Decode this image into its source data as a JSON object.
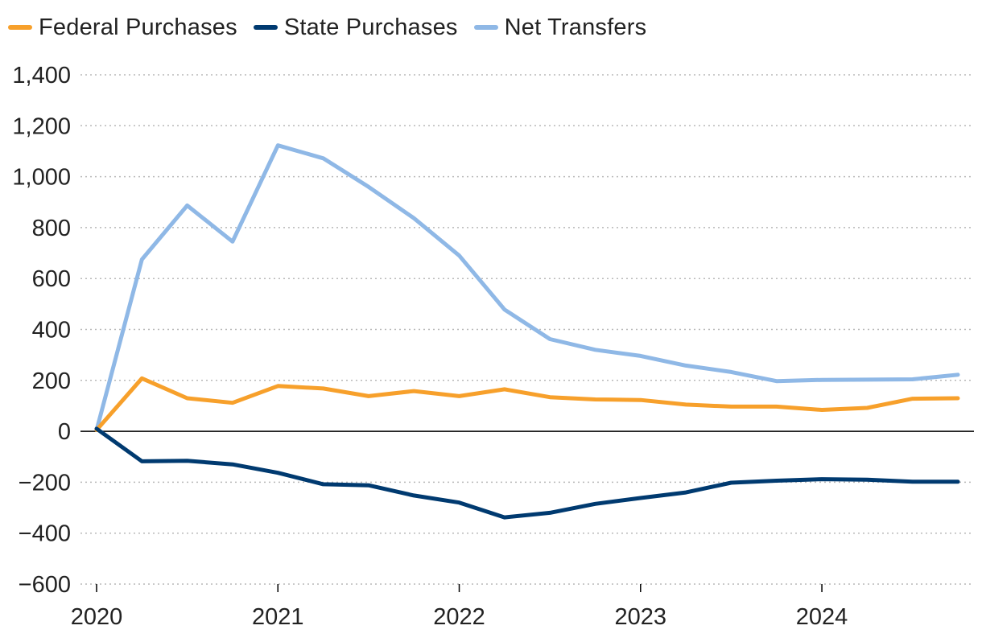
{
  "chart_data": {
    "type": "line",
    "title": "",
    "xlabel": "",
    "ylabel": "",
    "ylim": [
      -600,
      1400
    ],
    "yticks": [
      -600,
      -400,
      -200,
      0,
      200,
      400,
      600,
      800,
      1000,
      1200,
      1400
    ],
    "ytick_labels": [
      "−600",
      "−400",
      "−200",
      "0",
      "200",
      "400",
      "600",
      "800",
      "1,000",
      "1,200",
      "1,400"
    ],
    "xlim": [
      2020.0,
      2024.75
    ],
    "xticks": [
      2020,
      2021,
      2022,
      2023,
      2024
    ],
    "xtick_labels": [
      "2020",
      "2021",
      "2022",
      "2023",
      "2024"
    ],
    "grid": "horizontal dotted",
    "legend_position": "top-left",
    "x": [
      2020.0,
      2020.25,
      2020.5,
      2020.75,
      2021.0,
      2021.25,
      2021.5,
      2021.75,
      2022.0,
      2022.25,
      2022.5,
      2022.75,
      2023.0,
      2023.25,
      2023.5,
      2023.75,
      2024.0,
      2024.25,
      2024.5,
      2024.75
    ],
    "series": [
      {
        "name": "Federal Purchases",
        "color": "#f7a02b",
        "values": [
          5,
          208,
          130,
          112,
          178,
          168,
          138,
          158,
          138,
          165,
          134,
          125,
          123,
          105,
          97,
          97,
          84,
          92,
          128,
          130
        ]
      },
      {
        "name": "State Purchases",
        "color": "#003a70",
        "values": [
          10,
          -118,
          -116,
          -130,
          -163,
          -208,
          -212,
          -252,
          -280,
          -338,
          -320,
          -285,
          -262,
          -240,
          -202,
          -194,
          -188,
          -190,
          -198,
          -198
        ]
      },
      {
        "name": "Net Transfers",
        "color": "#8fb8e6",
        "values": [
          5,
          675,
          887,
          745,
          1123,
          1072,
          960,
          837,
          690,
          478,
          362,
          320,
          296,
          258,
          233,
          197,
          202,
          203,
          204,
          222
        ]
      }
    ]
  }
}
